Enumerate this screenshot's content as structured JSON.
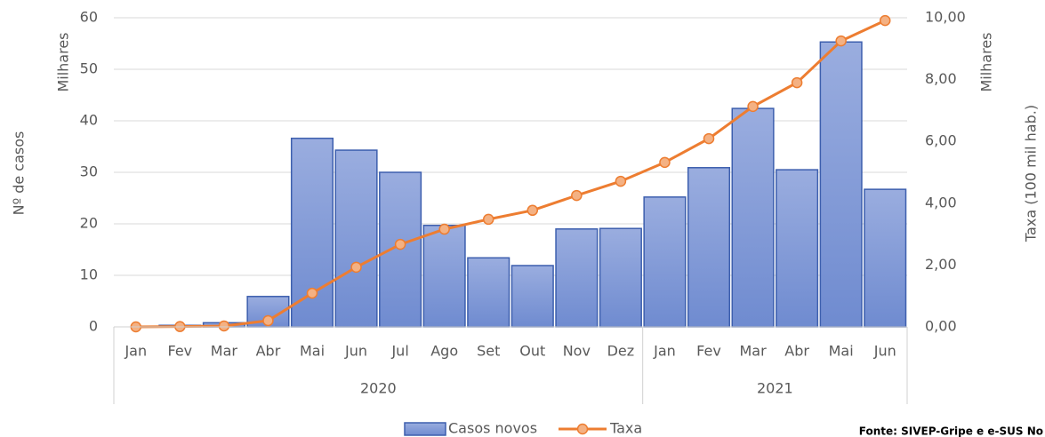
{
  "chart_data": {
    "type": "bar_line",
    "category_groups": [
      {
        "name": "2020",
        "categories": [
          "Jan",
          "Fev",
          "Mar",
          "Abr",
          "Mai",
          "Jun",
          "Jul",
          "Ago",
          "Set",
          "Out",
          "Nov",
          "Dez"
        ]
      },
      {
        "name": "2021",
        "categories": [
          "Jan",
          "Fev",
          "Mar",
          "Abr",
          "Mai",
          "Jun"
        ]
      }
    ],
    "series": [
      {
        "name": "Casos novos",
        "type": "bar",
        "color": "#8fa3d9",
        "edge": "#3d5fae",
        "values": [
          0,
          0.3,
          0.8,
          5.9,
          36.6,
          34.3,
          30.0,
          19.7,
          13.4,
          11.9,
          19.0,
          19.1,
          25.2,
          30.9,
          42.4,
          30.5,
          55.3,
          26.7
        ]
      },
      {
        "name": "Taxa",
        "type": "line",
        "axis": "y2",
        "color": "#ed7d31",
        "marker": "#f4b183",
        "values": [
          0,
          0.01,
          0.03,
          0.2,
          1.09,
          1.93,
          2.67,
          3.16,
          3.48,
          3.77,
          4.25,
          4.71,
          5.32,
          6.09,
          7.13,
          7.9,
          9.25,
          9.91
        ]
      }
    ],
    "ylabel": "Nº de casos",
    "yunit": "Milhares",
    "y2label": "Taxa (100 mil hab.)",
    "y2unit": "Milhares",
    "ylim": [
      0,
      60
    ],
    "yticks": [
      0,
      10,
      20,
      30,
      40,
      50,
      60
    ],
    "y2lim": [
      0,
      10
    ],
    "y2ticks": [
      {
        "value": 0,
        "label": "0,00"
      },
      {
        "value": 2,
        "label": "2,00"
      },
      {
        "value": 4,
        "label": "4,00"
      },
      {
        "value": 6,
        "label": "6,00"
      },
      {
        "value": 8,
        "label": "8,00"
      },
      {
        "value": 10,
        "label": "10,00"
      }
    ],
    "grid": true,
    "legend": "bottom",
    "source": "Fonte: SIVEP-Gripe e e-SUS No"
  }
}
